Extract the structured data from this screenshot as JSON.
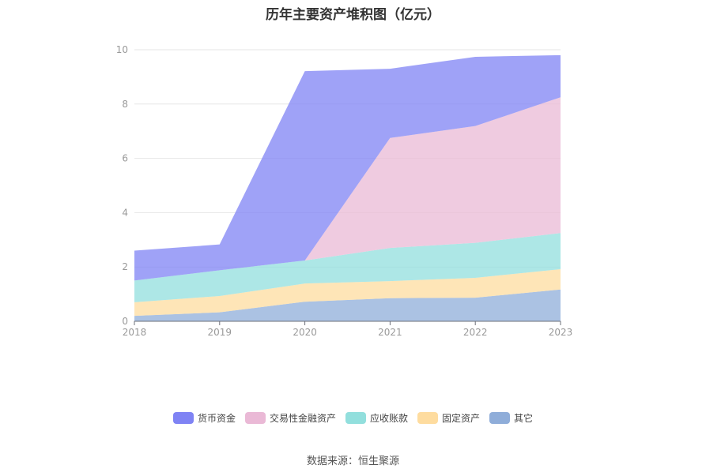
{
  "chart_data": {
    "type": "area",
    "stacked": true,
    "title": "历年主要资产堆积图（亿元）",
    "x": [
      "2018",
      "2019",
      "2020",
      "2021",
      "2022",
      "2023"
    ],
    "ylim": [
      0,
      10
    ],
    "yticks": [
      "0",
      "2",
      "4",
      "6",
      "8",
      "10"
    ],
    "grid": "horizontal",
    "legend_position": "bottom",
    "series": [
      {
        "name": "其它",
        "color": "#8fadd9",
        "values": [
          0.2,
          0.33,
          0.72,
          0.85,
          0.87,
          1.17
        ]
      },
      {
        "name": "固定资产",
        "color": "#fedc9f",
        "values": [
          0.5,
          0.6,
          0.67,
          0.63,
          0.73,
          0.75
        ]
      },
      {
        "name": "应收账款",
        "color": "#92dfdd",
        "values": [
          0.8,
          0.95,
          0.85,
          1.22,
          1.29,
          1.33
        ]
      },
      {
        "name": "交易性金融资产",
        "color": "#eab9d6",
        "values": [
          0,
          0,
          0,
          4.05,
          4.3,
          5.0
        ]
      },
      {
        "name": "货币资金",
        "color": "#7f83f4",
        "values": [
          1.1,
          0.95,
          6.97,
          2.55,
          2.55,
          1.55
        ]
      }
    ]
  },
  "legend_order": [
    "货币资金",
    "交易性金融资产",
    "应收账款",
    "固定资产",
    "其它"
  ],
  "source": "数据来源：恒生聚源"
}
